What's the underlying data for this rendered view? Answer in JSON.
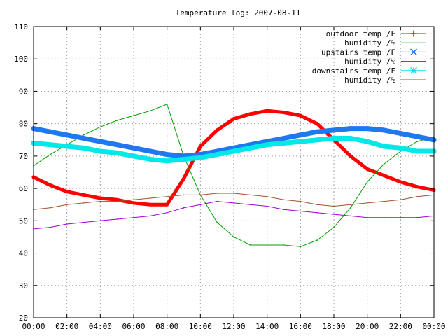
{
  "chart_data": {
    "type": "line",
    "title": "Temperature log: 2007-08-11",
    "xlabel": "",
    "ylabel": "",
    "xlim": [
      "00:00",
      "24:00"
    ],
    "ylim": [
      20,
      110
    ],
    "x_ticks": [
      "00:00",
      "02:00",
      "04:00",
      "06:00",
      "08:00",
      "10:00",
      "12:00",
      "14:00",
      "16:00",
      "18:00",
      "20:00",
      "22:00",
      "00:00"
    ],
    "y_ticks": [
      20,
      30,
      40,
      50,
      60,
      70,
      80,
      90,
      100,
      110
    ],
    "grid": true,
    "legend_position": "top-right",
    "x": [
      "00:00",
      "01:00",
      "02:00",
      "03:00",
      "04:00",
      "05:00",
      "06:00",
      "07:00",
      "08:00",
      "09:00",
      "10:00",
      "11:00",
      "12:00",
      "13:00",
      "14:00",
      "15:00",
      "16:00",
      "17:00",
      "18:00",
      "19:00",
      "20:00",
      "21:00",
      "22:00",
      "23:00",
      "24:00"
    ],
    "series": [
      {
        "name": "outdoor temp /F",
        "color": "#ff0000",
        "marker": "plus",
        "width": 5,
        "values": [
          63.5,
          61,
          59,
          58,
          57,
          56.5,
          55.5,
          55,
          55,
          63,
          73,
          78,
          81.5,
          83,
          84,
          83.5,
          82.5,
          80,
          75,
          70,
          66,
          64,
          62,
          60.5,
          59.5
        ]
      },
      {
        "name": "humidity /%",
        "color": "#00a000",
        "marker": "none",
        "width": 1,
        "values": [
          67,
          70.5,
          73.5,
          76.5,
          79,
          81,
          82.5,
          84,
          86,
          70,
          58,
          49.5,
          45,
          42.5,
          42.5,
          42.5,
          42,
          44,
          48,
          54,
          62,
          67.5,
          71.5,
          74.5,
          76
        ]
      },
      {
        "name": "upstairs temp /F",
        "color": "#1e78f0",
        "marker": "x",
        "width": 7,
        "values": [
          78.5,
          77.5,
          76.5,
          75.5,
          74.5,
          73.5,
          72.5,
          71.5,
          70.5,
          70,
          70.5,
          71.5,
          72.5,
          73.5,
          74.5,
          75.5,
          76.5,
          77.5,
          78,
          78.5,
          78.5,
          78,
          77,
          76,
          75
        ]
      },
      {
        "name": "humidity /%",
        "color": "#a000d8",
        "marker": "none",
        "width": 1,
        "values": [
          47.5,
          48,
          49,
          49.5,
          50,
          50.5,
          51,
          51.5,
          52.5,
          54,
          55,
          56,
          55.5,
          55,
          54.5,
          53.5,
          53,
          52.5,
          52,
          51.5,
          51,
          51,
          51,
          51,
          51.5
        ]
      },
      {
        "name": "downstairs temp /F",
        "color": "#00e8e8",
        "marker": "star",
        "width": 7,
        "values": [
          74,
          73.5,
          73,
          72.5,
          71.5,
          71,
          70,
          69,
          68.5,
          69,
          69.5,
          70.5,
          71.5,
          72.5,
          73.5,
          74,
          74.5,
          75,
          75.5,
          75.5,
          74.5,
          73,
          72.5,
          71.5,
          71.5
        ]
      },
      {
        "name": "humidity /%",
        "color": "#a0522d",
        "marker": "none",
        "width": 1,
        "values": [
          53.5,
          54,
          55,
          55.5,
          56,
          56,
          56.5,
          57,
          57.5,
          58,
          58,
          58.5,
          58.5,
          58,
          57.5,
          56.5,
          56,
          55,
          54.5,
          55,
          55.5,
          56,
          56.5,
          57.5,
          58
        ]
      }
    ]
  }
}
